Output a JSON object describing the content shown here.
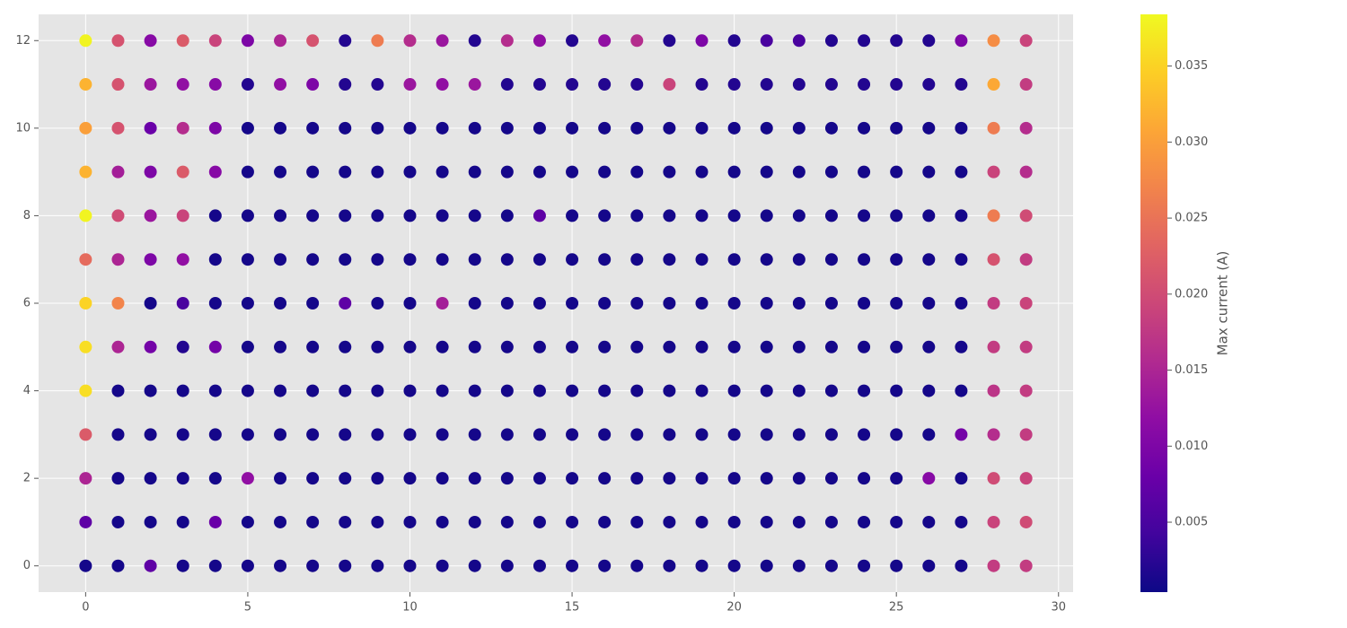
{
  "chart_data": {
    "type": "scatter",
    "x": [
      0,
      1,
      2,
      3,
      4,
      5,
      6,
      7,
      8,
      9,
      10,
      11,
      12,
      13,
      14,
      15,
      16,
      17,
      18,
      19,
      20,
      21,
      22,
      23,
      24,
      25,
      26,
      27,
      28,
      29
    ],
    "y": [
      0,
      1,
      2,
      3,
      4,
      5,
      6,
      7,
      8,
      9,
      10,
      11,
      12
    ],
    "values": [
      [
        0.001,
        0.001,
        0.007,
        0.001,
        0.001,
        0.001,
        0.001,
        0.001,
        0.001,
        0.001,
        0.001,
        0.001,
        0.001,
        0.001,
        0.001,
        0.001,
        0.001,
        0.001,
        0.001,
        0.001,
        0.001,
        0.001,
        0.001,
        0.001,
        0.001,
        0.001,
        0.001,
        0.001,
        0.018,
        0.018
      ],
      [
        0.007,
        0.001,
        0.001,
        0.001,
        0.008,
        0.001,
        0.001,
        0.001,
        0.001,
        0.001,
        0.001,
        0.001,
        0.001,
        0.001,
        0.001,
        0.001,
        0.001,
        0.001,
        0.001,
        0.001,
        0.001,
        0.001,
        0.001,
        0.001,
        0.001,
        0.001,
        0.001,
        0.001,
        0.019,
        0.02
      ],
      [
        0.015,
        0.001,
        0.001,
        0.001,
        0.001,
        0.012,
        0.001,
        0.001,
        0.001,
        0.001,
        0.001,
        0.001,
        0.001,
        0.001,
        0.001,
        0.001,
        0.001,
        0.001,
        0.001,
        0.001,
        0.001,
        0.001,
        0.001,
        0.001,
        0.001,
        0.001,
        0.011,
        0.001,
        0.02,
        0.019
      ],
      [
        0.022,
        0.001,
        0.001,
        0.001,
        0.001,
        0.001,
        0.001,
        0.001,
        0.001,
        0.001,
        0.001,
        0.001,
        0.001,
        0.001,
        0.001,
        0.001,
        0.001,
        0.001,
        0.001,
        0.001,
        0.001,
        0.001,
        0.001,
        0.001,
        0.001,
        0.001,
        0.001,
        0.009,
        0.016,
        0.018
      ],
      [
        0.036,
        0.001,
        0.001,
        0.001,
        0.001,
        0.001,
        0.001,
        0.001,
        0.001,
        0.001,
        0.001,
        0.001,
        0.001,
        0.001,
        0.001,
        0.001,
        0.001,
        0.001,
        0.001,
        0.001,
        0.001,
        0.001,
        0.001,
        0.001,
        0.001,
        0.001,
        0.001,
        0.001,
        0.017,
        0.018
      ],
      [
        0.036,
        0.015,
        0.009,
        0.002,
        0.009,
        0.001,
        0.001,
        0.001,
        0.001,
        0.001,
        0.001,
        0.001,
        0.001,
        0.001,
        0.001,
        0.001,
        0.001,
        0.001,
        0.001,
        0.001,
        0.001,
        0.001,
        0.001,
        0.001,
        0.001,
        0.001,
        0.001,
        0.001,
        0.018,
        0.018
      ],
      [
        0.035,
        0.027,
        0.001,
        0.005,
        0.001,
        0.001,
        0.001,
        0.001,
        0.007,
        0.001,
        0.001,
        0.014,
        0.001,
        0.001,
        0.001,
        0.001,
        0.001,
        0.001,
        0.001,
        0.001,
        0.001,
        0.001,
        0.001,
        0.001,
        0.001,
        0.001,
        0.001,
        0.001,
        0.018,
        0.019
      ],
      [
        0.024,
        0.015,
        0.01,
        0.012,
        0.001,
        0.001,
        0.001,
        0.001,
        0.001,
        0.001,
        0.001,
        0.001,
        0.001,
        0.001,
        0.001,
        0.001,
        0.001,
        0.001,
        0.001,
        0.001,
        0.001,
        0.001,
        0.001,
        0.001,
        0.001,
        0.001,
        0.001,
        0.001,
        0.021,
        0.018
      ],
      [
        0.038,
        0.02,
        0.013,
        0.019,
        0.001,
        0.001,
        0.001,
        0.001,
        0.001,
        0.001,
        0.001,
        0.001,
        0.001,
        0.001,
        0.007,
        0.001,
        0.001,
        0.001,
        0.001,
        0.001,
        0.001,
        0.001,
        0.001,
        0.001,
        0.001,
        0.001,
        0.001,
        0.001,
        0.026,
        0.02
      ],
      [
        0.032,
        0.014,
        0.01,
        0.022,
        0.011,
        0.001,
        0.001,
        0.001,
        0.001,
        0.001,
        0.001,
        0.001,
        0.001,
        0.001,
        0.001,
        0.001,
        0.001,
        0.001,
        0.001,
        0.001,
        0.001,
        0.001,
        0.001,
        0.001,
        0.001,
        0.001,
        0.001,
        0.001,
        0.019,
        0.016
      ],
      [
        0.03,
        0.021,
        0.008,
        0.016,
        0.01,
        0.001,
        0.001,
        0.001,
        0.001,
        0.001,
        0.001,
        0.001,
        0.001,
        0.001,
        0.001,
        0.001,
        0.001,
        0.001,
        0.001,
        0.001,
        0.001,
        0.001,
        0.001,
        0.001,
        0.001,
        0.001,
        0.001,
        0.001,
        0.026,
        0.016
      ],
      [
        0.032,
        0.021,
        0.013,
        0.012,
        0.011,
        0.002,
        0.012,
        0.01,
        0.002,
        0.002,
        0.013,
        0.012,
        0.013,
        0.002,
        0.002,
        0.002,
        0.002,
        0.002,
        0.019,
        0.002,
        0.002,
        0.002,
        0.002,
        0.002,
        0.002,
        0.002,
        0.002,
        0.002,
        0.031,
        0.018
      ],
      [
        0.038,
        0.021,
        0.011,
        0.022,
        0.019,
        0.01,
        0.015,
        0.021,
        0.002,
        0.026,
        0.016,
        0.013,
        0.002,
        0.016,
        0.012,
        0.002,
        0.012,
        0.016,
        0.002,
        0.01,
        0.002,
        0.005,
        0.005,
        0.002,
        0.002,
        0.002,
        0.002,
        0.01,
        0.028,
        0.019
      ]
    ],
    "xlim": [
      -1.45,
      30.45
    ],
    "ylim": [
      -0.6,
      12.6
    ],
    "xticks": [
      0,
      5,
      10,
      15,
      20,
      25,
      30
    ],
    "yticks": [
      0,
      2,
      4,
      6,
      8,
      10,
      12
    ],
    "grid": true,
    "colormap": "plasma",
    "clim": [
      0.0004,
      0.0384
    ],
    "cticks": [
      0.005,
      {
        "value": 0.01,
        "label": "0.010"
      },
      0.015,
      {
        "value": 0.02,
        "label": "0.020"
      },
      0.025,
      {
        "value": 0.03,
        "label": "0.030"
      },
      0.035
    ],
    "colorbar_label": "Max current (A)"
  }
}
